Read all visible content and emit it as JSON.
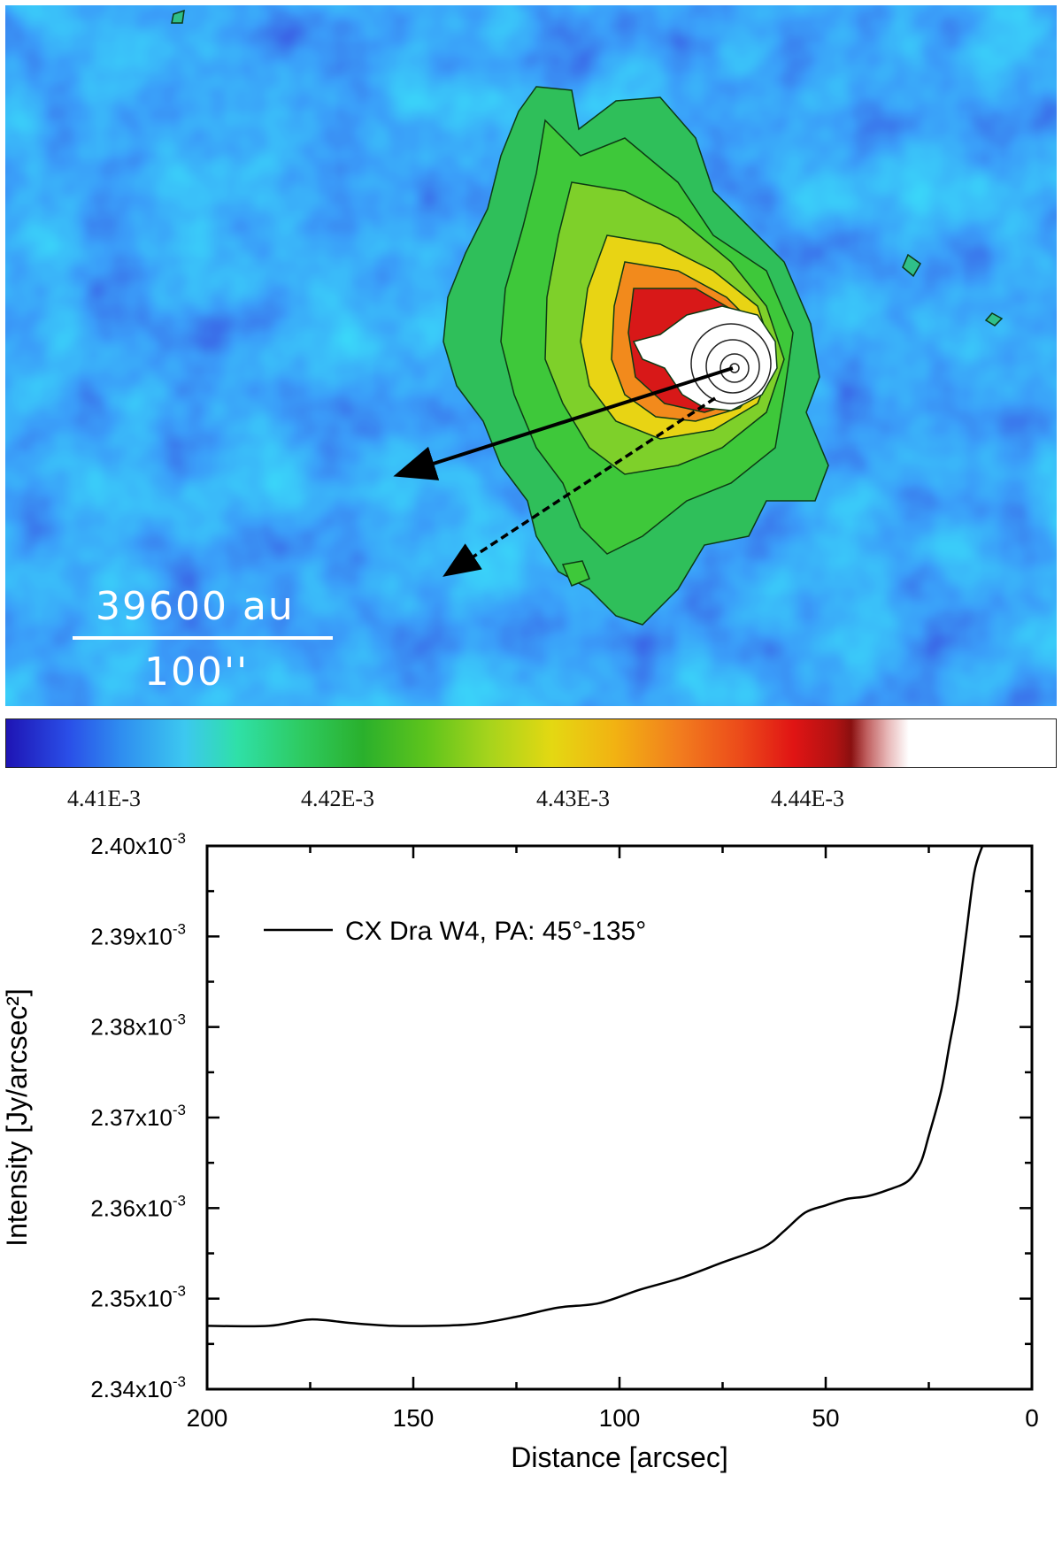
{
  "image_panel": {
    "scale_bar": {
      "distance": "39600 au",
      "angle": "100''"
    }
  },
  "colorbar": {
    "tick_labels": [
      "4.41E-3",
      "4.42E-3",
      "4.43E-3",
      "4.44E-3"
    ]
  },
  "chart_data": {
    "type": "line",
    "xlabel": "Distance [arcsec]",
    "ylabel": "Intensity [Jy/arcsec²]",
    "xlim": [
      200,
      0
    ],
    "ylim": [
      0.00234,
      0.0024
    ],
    "x_ticks": [
      200,
      150,
      100,
      50,
      0
    ],
    "y_tick_labels": [
      {
        "value": 0.00234,
        "mantissa": "2.34x10",
        "exp": "-3"
      },
      {
        "value": 0.00235,
        "mantissa": "2.35x10",
        "exp": "-3"
      },
      {
        "value": 0.00236,
        "mantissa": "2.36x10",
        "exp": "-3"
      },
      {
        "value": 0.00237,
        "mantissa": "2.37x10",
        "exp": "-3"
      },
      {
        "value": 0.00238,
        "mantissa": "2.38x10",
        "exp": "-3"
      },
      {
        "value": 0.00239,
        "mantissa": "2.39x10",
        "exp": "-3"
      },
      {
        "value": 0.0024,
        "mantissa": "2.40x10",
        "exp": "-3"
      }
    ],
    "series": [
      {
        "name": "CX Dra W4, PA: 45°-135°",
        "x": [
          200,
          185,
          175,
          165,
          155,
          145,
          135,
          125,
          115,
          105,
          95,
          85,
          75,
          65,
          60,
          55,
          50,
          45,
          40,
          35,
          30,
          27,
          25,
          22,
          20,
          18,
          16,
          14,
          12
        ],
        "y": [
          0.002347,
          0.002347,
          0.0023477,
          0.0023473,
          0.002347,
          0.002347,
          0.0023472,
          0.002348,
          0.002349,
          0.0023495,
          0.002351,
          0.0023523,
          0.002354,
          0.0023557,
          0.0023575,
          0.0023595,
          0.0023603,
          0.002361,
          0.0023613,
          0.002362,
          0.002363,
          0.002365,
          0.002368,
          0.002373,
          0.002378,
          0.002383,
          0.00239,
          0.002397,
          0.0024
        ]
      }
    ]
  }
}
